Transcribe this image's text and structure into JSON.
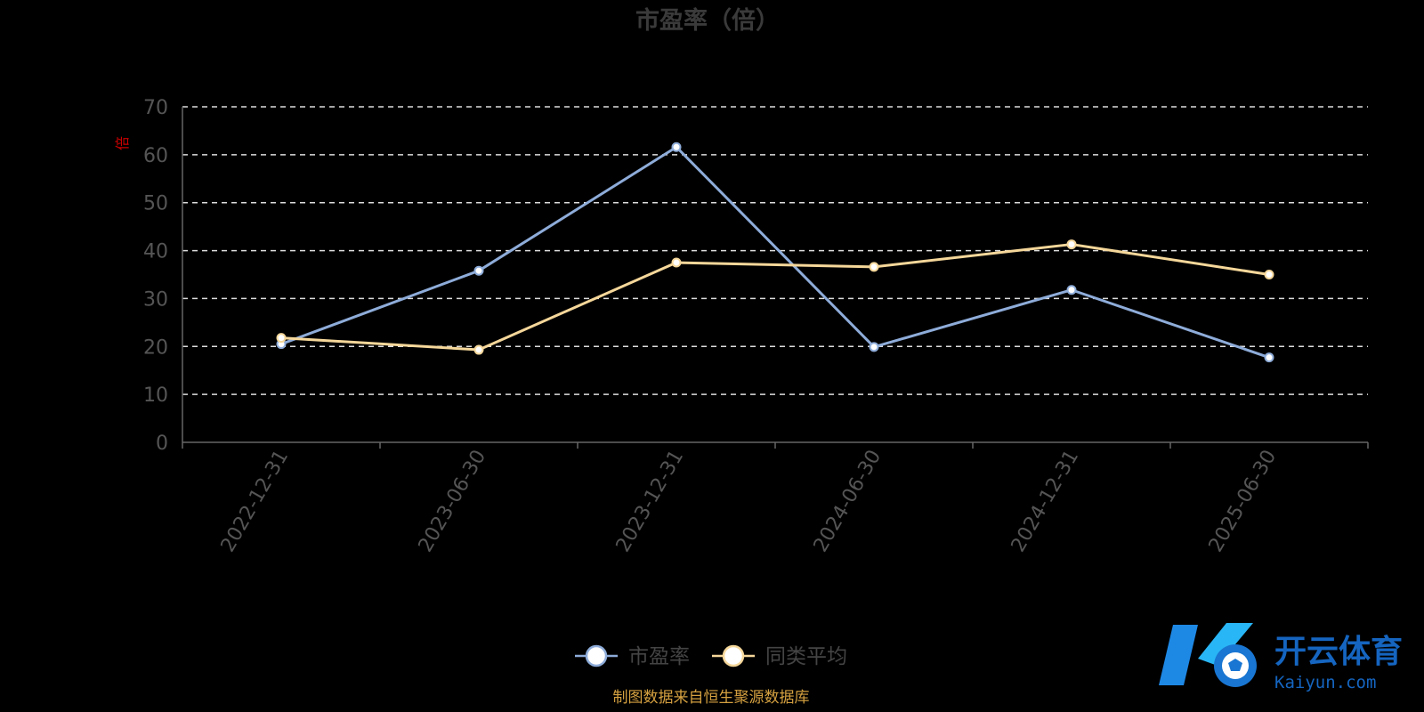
{
  "chart_data": {
    "type": "line",
    "title": "市盈率（倍）",
    "y_unit": "倍",
    "categories": [
      "2022-12-31",
      "2023-06-30",
      "2023-12-31",
      "2024-06-30",
      "2024-12-31",
      "2025-06-30"
    ],
    "series": [
      {
        "name": "市盈率",
        "values": [
          20.5,
          35.8,
          61.6,
          19.9,
          31.8,
          17.7
        ],
        "color": "#8eacd9"
      },
      {
        "name": "同类平均",
        "values": [
          21.8,
          19.3,
          37.5,
          36.6,
          41.3,
          35.0
        ],
        "color": "#f5d79a"
      }
    ],
    "ylim": [
      0,
      70
    ],
    "yticks": [
      0,
      10,
      20,
      30,
      40,
      50,
      60,
      70
    ],
    "grid": true,
    "grid_style": "dashed",
    "legend_position": "bottom"
  },
  "source_note": "制图数据来自恒生聚源数据库",
  "watermark": {
    "cn": "开云体育",
    "en": "Kaiyun.com"
  },
  "colors": {
    "background": "#000000",
    "grid": "#dddddd",
    "axis": "#666666",
    "source_note": "#d4a040",
    "watermark": "#1565c0"
  }
}
